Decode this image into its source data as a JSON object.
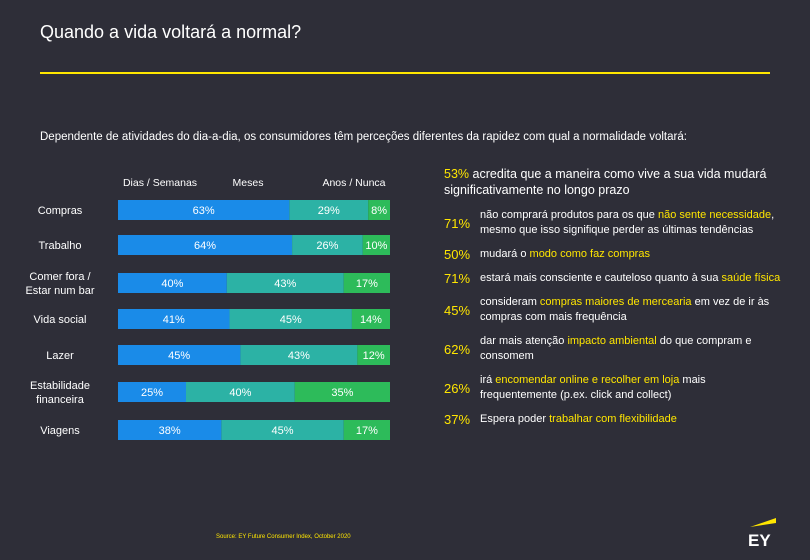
{
  "title": "Quando a vida voltará a normal?",
  "subtitle": "Dependente de atividades do dia-a-dia, os consumidores têm perceções diferentes da rapidez com qual a normalidade voltará:",
  "colors": {
    "accent": "#ffe600",
    "background": "#2e2e38",
    "blue": "#1a8be8",
    "teal": "#2cb2a5",
    "green": "#2dbb5a"
  },
  "chart_data": {
    "type": "bar",
    "orientation": "horizontal",
    "stacked": true,
    "normalized": true,
    "legend_position": "top",
    "series": [
      {
        "name": "Dias / Semanas",
        "color": "#1a8be8"
      },
      {
        "name": "Meses",
        "color": "#2cb2a5"
      },
      {
        "name": "Anos / Nunca",
        "color": "#2dbb5a"
      }
    ],
    "rows": [
      {
        "label": [
          "Compras"
        ],
        "values": [
          63,
          29,
          8
        ]
      },
      {
        "label": [
          "Trabalho"
        ],
        "values": [
          64,
          26,
          10
        ]
      },
      {
        "label": [
          "Comer fora /",
          "Estar num bar"
        ],
        "values": [
          40,
          43,
          17
        ]
      },
      {
        "label": [
          "Vida social"
        ],
        "values": [
          41,
          45,
          14
        ]
      },
      {
        "label": [
          "Lazer"
        ],
        "values": [
          45,
          43,
          12
        ]
      },
      {
        "label": [
          "Estabilidade",
          "financeira"
        ],
        "values": [
          25,
          40,
          35
        ]
      },
      {
        "label": [
          "Viagens"
        ],
        "values": [
          38,
          45,
          17
        ]
      }
    ]
  },
  "headline": {
    "pct": "53%",
    "text": "acredita que a maneira como vive a sua vida mudará significativamente no longo prazo"
  },
  "stats": [
    {
      "pct": "71%",
      "parts": [
        {
          "t": "não comprará produtos para os que "
        },
        {
          "t": "não sente necessidade",
          "hl": true
        },
        {
          "t": ", mesmo que isso signifique perder as últimas tendências"
        }
      ]
    },
    {
      "pct": "50%",
      "parts": [
        {
          "t": "mudará o "
        },
        {
          "t": "modo como faz compras",
          "hl": true
        }
      ]
    },
    {
      "pct": "71%",
      "parts": [
        {
          "t": "estará mais consciente e cauteloso quanto à sua "
        },
        {
          "t": "saúde física",
          "hl": true
        }
      ]
    },
    {
      "pct": "45%",
      "parts": [
        {
          "t": "consideram "
        },
        {
          "t": "compras maiores de mercearia",
          "hl": true
        },
        {
          "t": " em vez de ir às compras com mais frequência"
        }
      ]
    },
    {
      "pct": "62%",
      "parts": [
        {
          "t": "dar mais atenção "
        },
        {
          "t": "impacto ambiental",
          "hl": true
        },
        {
          "t": " do que compram e consomem"
        }
      ]
    },
    {
      "pct": "26%",
      "parts": [
        {
          "t": "irá "
        },
        {
          "t": "encomendar online e recolher em loja",
          "hl": true
        },
        {
          "t": " mais frequentemente (p.ex. click and collect)"
        }
      ]
    },
    {
      "pct": "37%",
      "parts": [
        {
          "t": "Espera poder "
        },
        {
          "t": "trabalhar com flexibilidade",
          "hl": true
        }
      ]
    }
  ],
  "source": "Source: EY Future Consumer Index, October 2020",
  "logo": {
    "text": "EY",
    "icon": "ey-logo-icon"
  }
}
